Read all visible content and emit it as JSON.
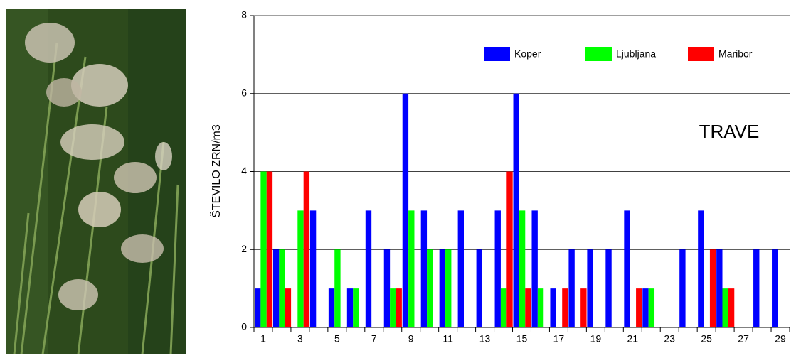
{
  "chart_data": {
    "type": "bar",
    "annotation": "TRAVE",
    "y_label": "ŠTEVILO ZRN/m3",
    "categories": [
      "1",
      null,
      "3",
      null,
      "5",
      null,
      "7",
      null,
      "9",
      null,
      "11",
      null,
      "13",
      null,
      "15",
      null,
      "17",
      null,
      "19",
      null,
      "21",
      null,
      "23",
      null,
      "25",
      null,
      "27",
      null,
      "29"
    ],
    "series": [
      {
        "name": "Koper",
        "color": "#0000ff",
        "values": [
          1,
          2,
          0,
          3,
          1,
          1,
          3,
          2,
          6,
          3,
          2,
          3,
          2,
          3,
          6,
          3,
          1,
          2,
          2,
          2,
          3,
          1,
          0,
          2,
          3,
          2,
          0,
          2,
          2
        ]
      },
      {
        "name": "Ljubljana",
        "color": "#00ff00",
        "values": [
          4,
          2,
          3,
          0,
          2,
          1,
          0,
          1,
          3,
          2,
          2,
          0,
          0,
          1,
          3,
          1,
          0,
          0,
          0,
          0,
          0,
          1,
          0,
          0,
          0,
          1,
          0,
          0,
          0
        ]
      },
      {
        "name": "Maribor",
        "color": "#ff0000",
        "values": [
          4,
          1,
          4,
          0,
          0,
          0,
          0,
          1,
          0,
          0,
          0,
          0,
          0,
          4,
          1,
          0,
          1,
          1,
          0,
          0,
          1,
          0,
          0,
          0,
          2,
          1,
          0,
          0,
          0
        ]
      }
    ],
    "ylim": [
      0,
      8
    ],
    "yticks": [
      0,
      2,
      4,
      6,
      8
    ],
    "grid": true,
    "legend": "top-right"
  }
}
